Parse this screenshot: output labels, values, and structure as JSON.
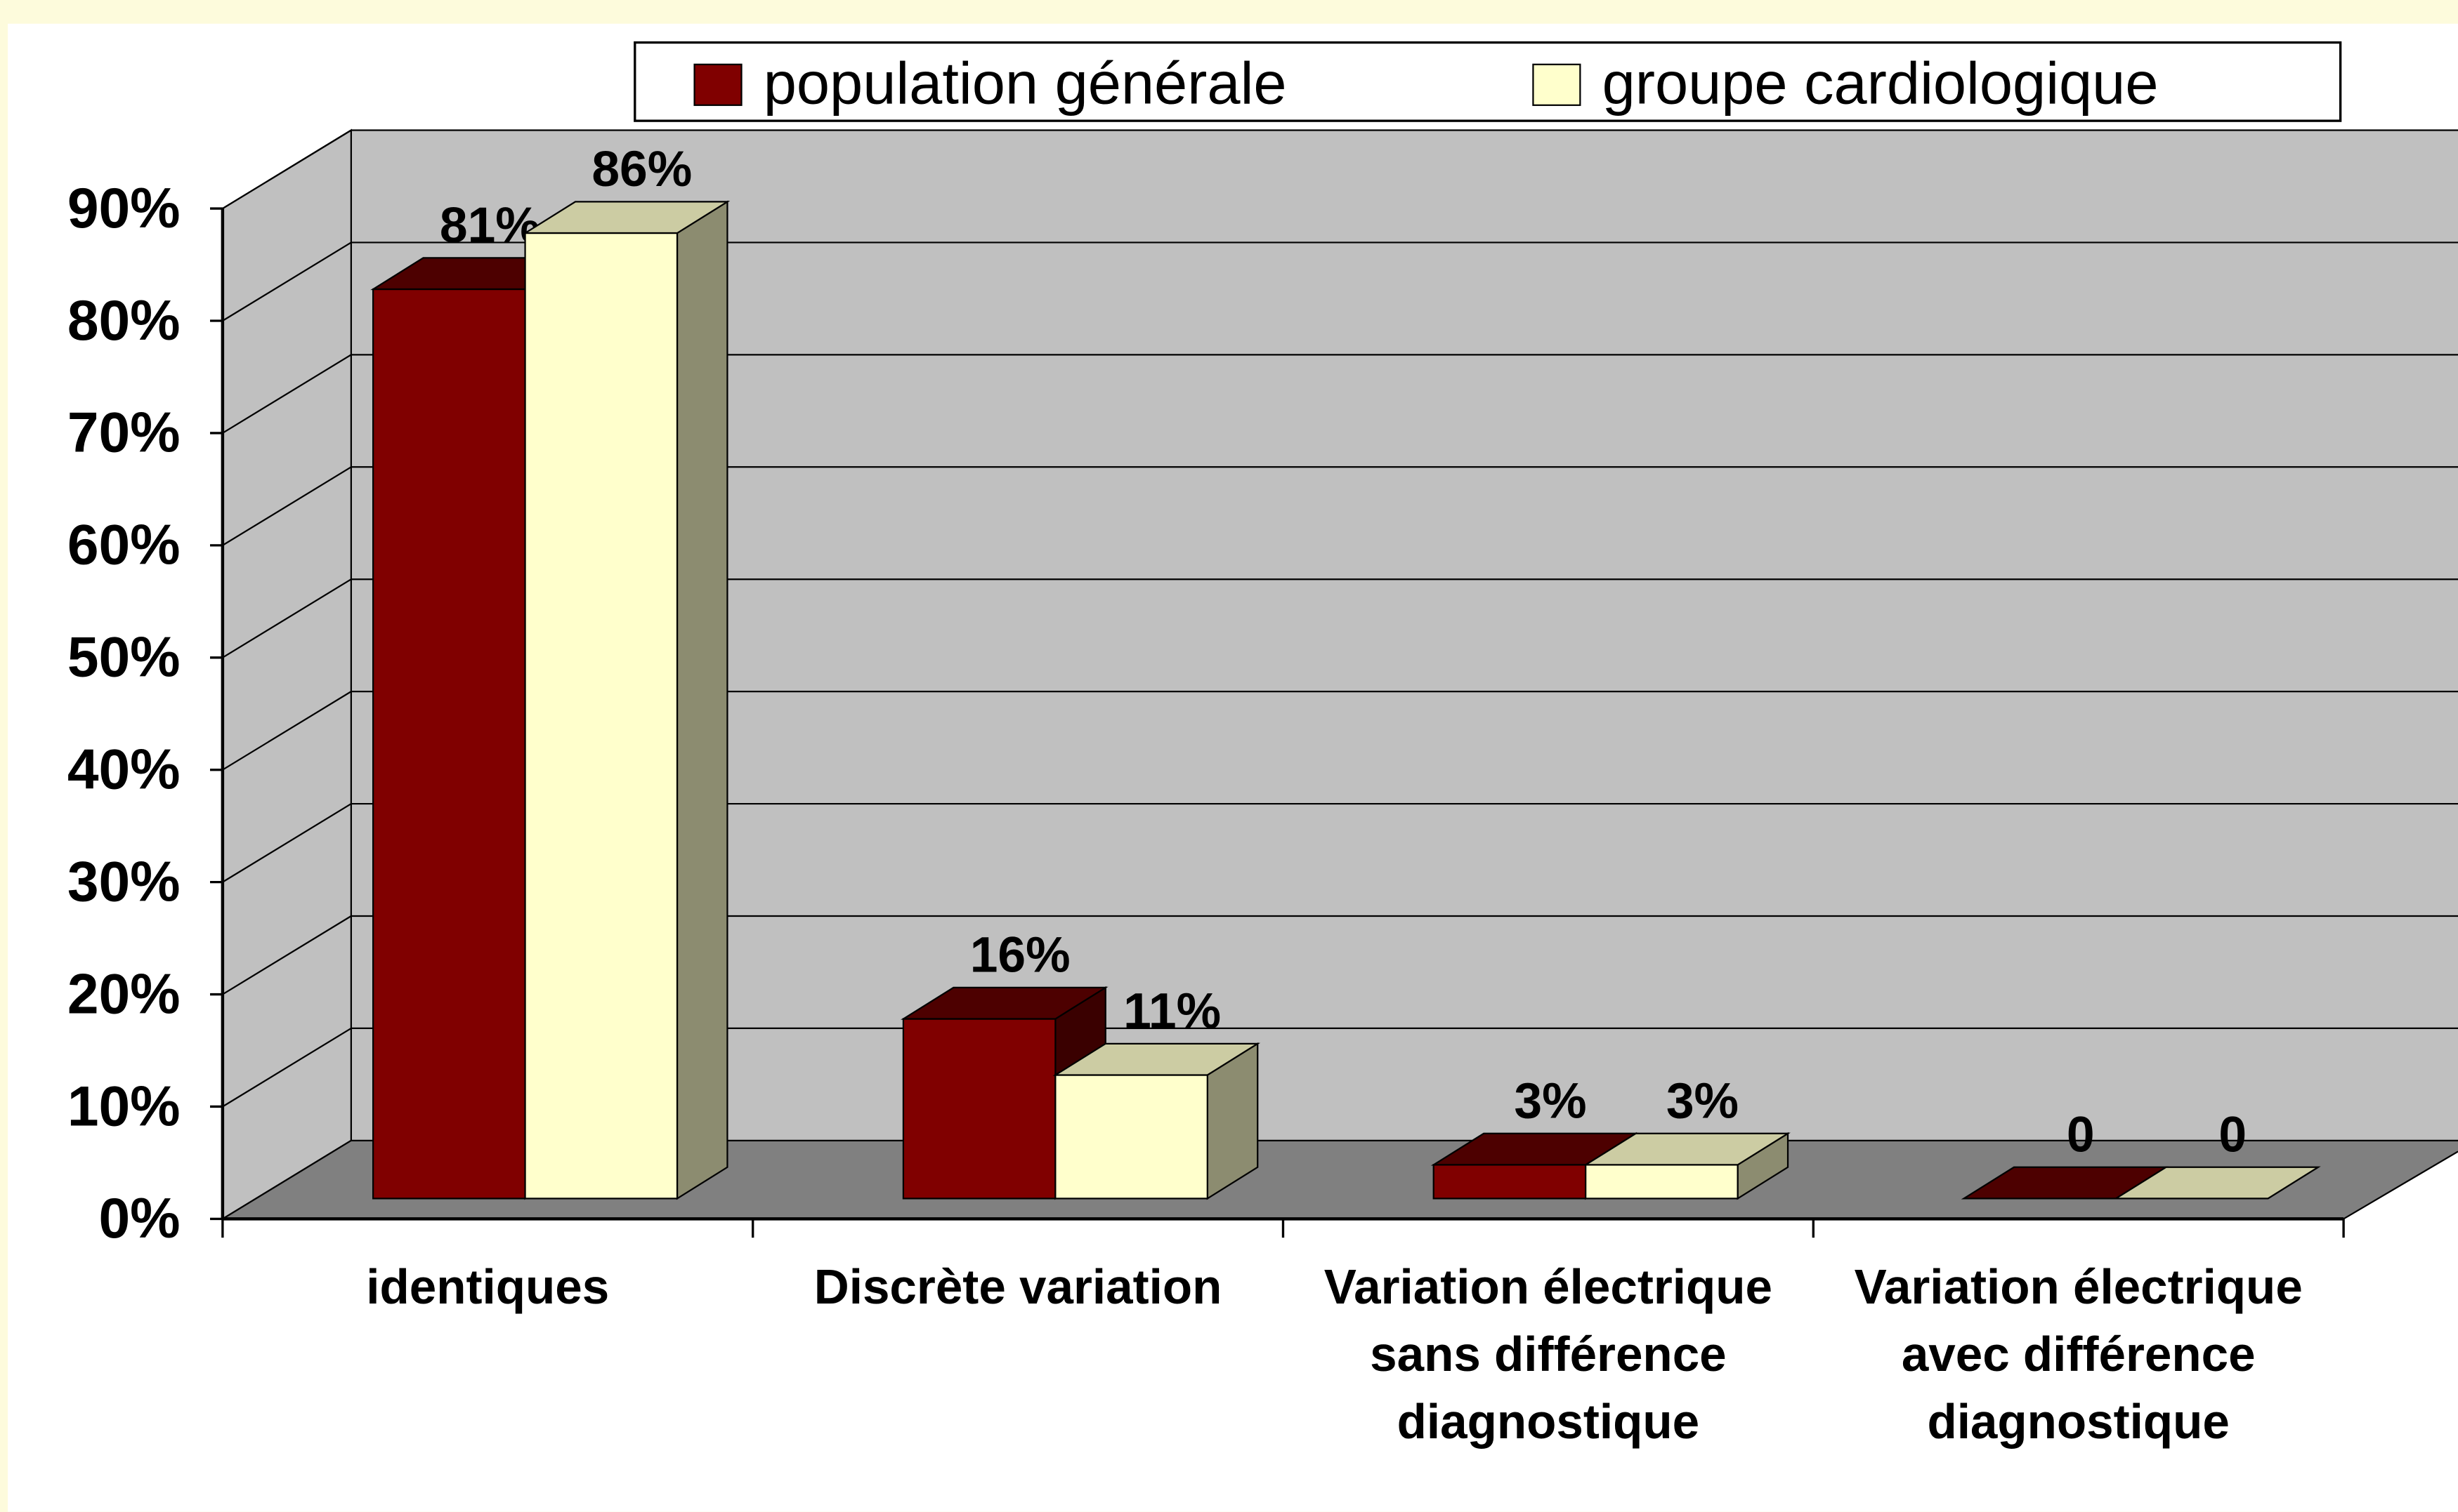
{
  "chart_data": {
    "type": "bar3d",
    "categories": [
      "identiques",
      "Discrète variation",
      "Variation électrique sans différence diagnostique",
      "Variation électrique avec différence diagnostique"
    ],
    "series": [
      {
        "name": "population générale",
        "color": "#800000",
        "values": [
          81,
          16,
          3,
          0
        ],
        "value_labels": [
          "81%",
          "16%",
          "3%",
          "0"
        ]
      },
      {
        "name": "groupe cardiologique",
        "color": "#ffffcc",
        "values": [
          86,
          11,
          3,
          0
        ],
        "value_labels": [
          "86%",
          "11%",
          "3%",
          "0"
        ]
      }
    ],
    "ylim": [
      0,
      90
    ],
    "yticks": [
      {
        "value": 0,
        "label": "0%"
      },
      {
        "value": 10,
        "label": "10%"
      },
      {
        "value": 20,
        "label": "20%"
      },
      {
        "value": 30,
        "label": "30%"
      },
      {
        "value": 40,
        "label": "40%"
      },
      {
        "value": 50,
        "label": "50%"
      },
      {
        "value": 60,
        "label": "60%"
      },
      {
        "value": 70,
        "label": "70%"
      },
      {
        "value": 80,
        "label": "80%"
      },
      {
        "value": 90,
        "label": "90%"
      }
    ],
    "grid": true,
    "legend": "top"
  }
}
